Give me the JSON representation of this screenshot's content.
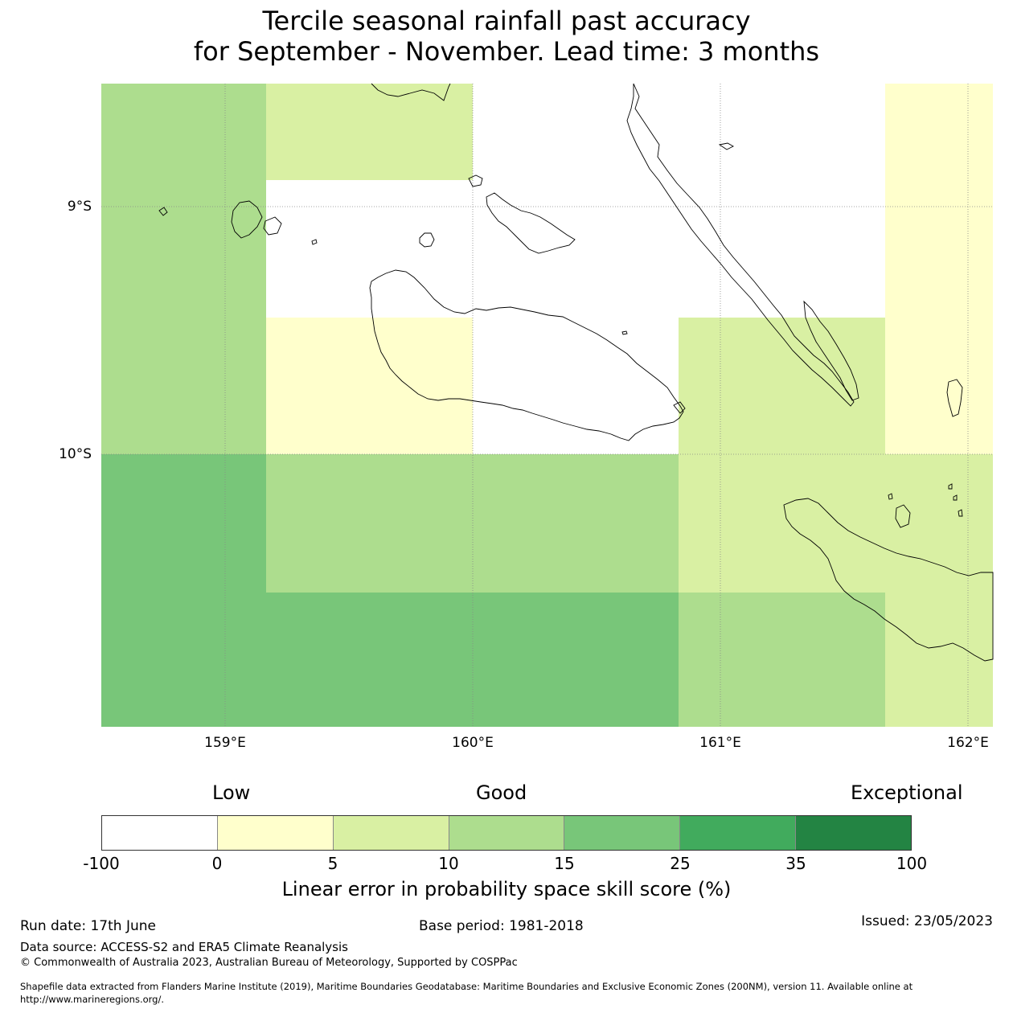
{
  "title_line1": "Tercile seasonal rainfall past accuracy",
  "title_line2": "for September - November. Lead time: 3 months",
  "map": {
    "lon_range": [
      158.5,
      162.1
    ],
    "lat_range": [
      -11.1,
      -8.5
    ],
    "lat_ticks": [
      {
        "value": -9,
        "label": "9°S"
      },
      {
        "value": -10,
        "label": "10°S"
      }
    ],
    "lon_ticks": [
      {
        "value": 159,
        "label": "159°E"
      },
      {
        "value": 160,
        "label": "160°E"
      },
      {
        "value": 161,
        "label": "161°E"
      },
      {
        "value": 162,
        "label": "162°E"
      }
    ]
  },
  "colorbar": {
    "category_labels": [
      "Low",
      "Good",
      "Exceptional"
    ],
    "ticks": [
      "-100",
      "0",
      "5",
      "10",
      "15",
      "25",
      "35",
      "100"
    ],
    "colors": [
      "#ffffff",
      "#ffffcc",
      "#d9f0a3",
      "#addd8e",
      "#78c679",
      "#41ab5d",
      "#238443"
    ],
    "xlabel": "Linear error in probability space skill score (%)"
  },
  "footer": {
    "run_date": "Run date: 17th June",
    "base_period": "Base period: 1981-2018",
    "issued": "Issued: 23/05/2023",
    "data_source": "Data source: ACCESS-S2 and ERA5 Climate Reanalysis",
    "copyright": "© Commonwealth of Australia 2023, Australian Bureau of Meteorology, Supported by COSPPac",
    "shapefile_line1": "Shapefile data extracted from Flanders Marine Institute (2019), Maritime Boundaries Geodatabase: Maritime Boundaries and Exclusive Economic Zones (200NM), version 11. Available online at",
    "shapefile_line2": "http://www.marineregions.org/."
  }
}
